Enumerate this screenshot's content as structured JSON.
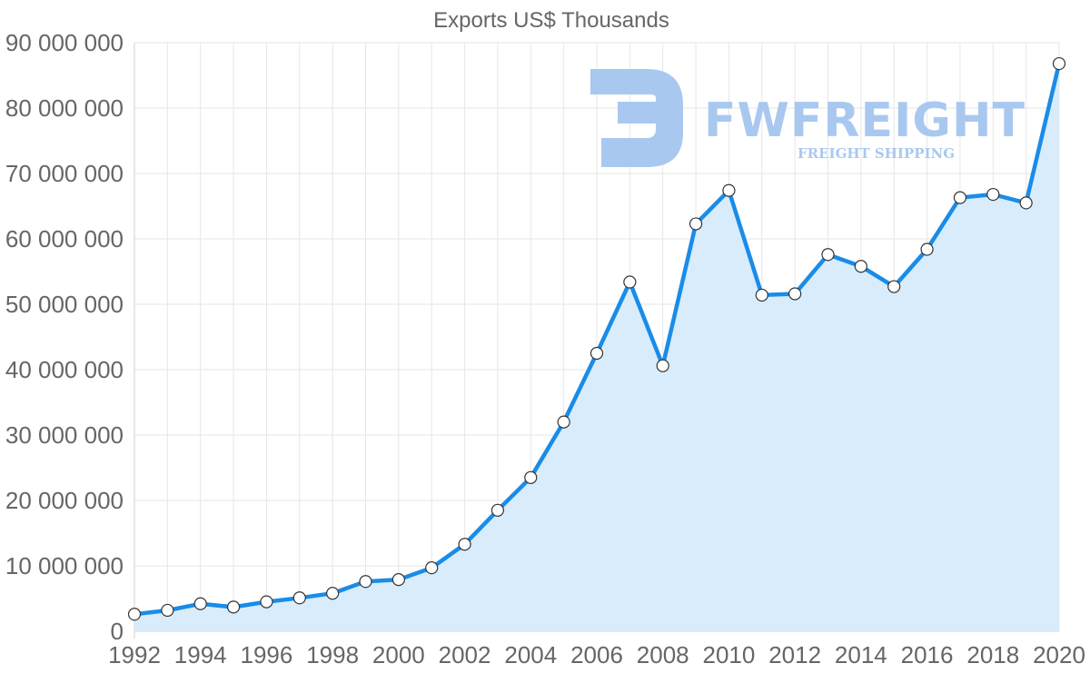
{
  "chart_data": {
    "type": "area",
    "title": "Exports US$ Thousands",
    "xlabel": "",
    "ylabel": "",
    "x": [
      1992,
      1993,
      1994,
      1995,
      1996,
      1997,
      1998,
      1999,
      2000,
      2001,
      2002,
      2003,
      2004,
      2005,
      2006,
      2007,
      2008,
      2009,
      2010,
      2011,
      2012,
      2013,
      2014,
      2015,
      2016,
      2017,
      2018,
      2019,
      2020
    ],
    "series": [
      {
        "name": "Exports US$ Thousands",
        "values": [
          2600000,
          3200000,
          4200000,
          3700000,
          4500000,
          5100000,
          5800000,
          7600000,
          7900000,
          9700000,
          13300000,
          18500000,
          23500000,
          32000000,
          42500000,
          53400000,
          40600000,
          62300000,
          67400000,
          51400000,
          51600000,
          57600000,
          55800000,
          52700000,
          58400000,
          66300000,
          66800000,
          65500000,
          86800000
        ]
      }
    ],
    "ylim": [
      0,
      90000000
    ],
    "yticks": [
      0,
      10000000,
      20000000,
      30000000,
      40000000,
      50000000,
      60000000,
      70000000,
      80000000,
      90000000
    ],
    "ytick_labels": [
      "0",
      "10 000 000",
      "20 000 000",
      "30 000 000",
      "40 000 000",
      "50 000 000",
      "60 000 000",
      "70 000 000",
      "80 000 000",
      "90 000 000"
    ],
    "xtick_labels": [
      "1992",
      "1994",
      "1996",
      "1998",
      "2000",
      "2002",
      "2004",
      "2006",
      "2008",
      "2010",
      "2012",
      "2014",
      "2016",
      "2018",
      "2020"
    ],
    "grid": true,
    "colors": {
      "line": "#1a8ce8",
      "fill": "#d8ecfc",
      "marker_fill": "#ffffff",
      "marker_stroke": "#333333"
    }
  },
  "watermark": {
    "brand": "FWFREIGHT",
    "tagline": "FREIGHT SHIPPING",
    "color": "#a9c8f0"
  }
}
